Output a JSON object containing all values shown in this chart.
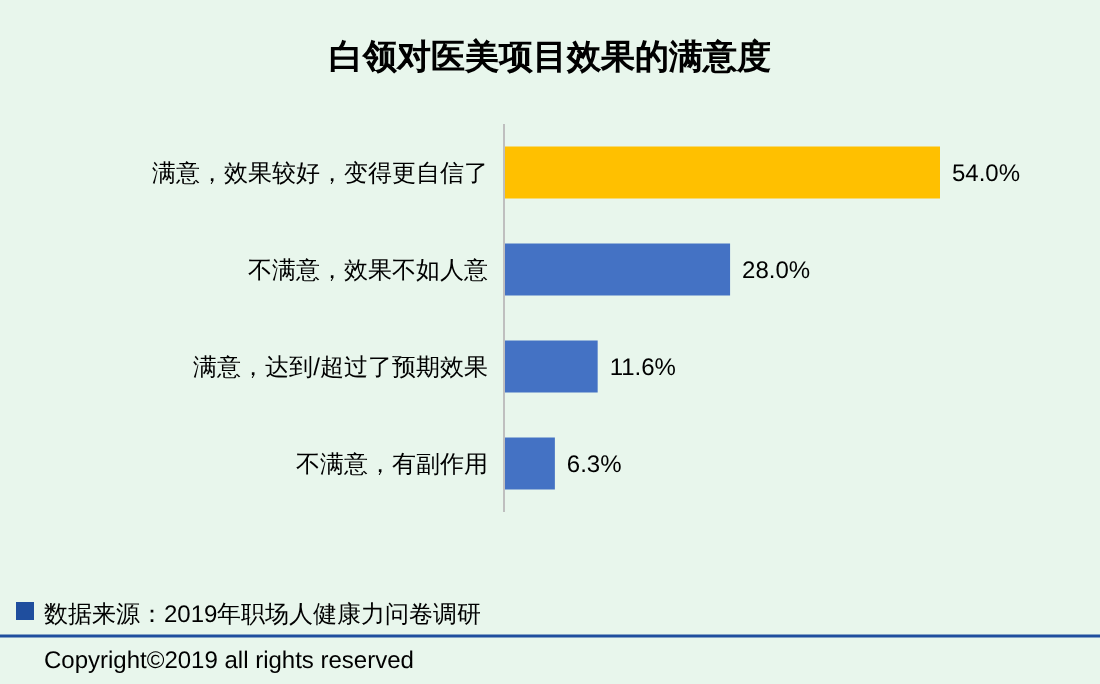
{
  "chart_data": {
    "type": "bar",
    "orientation": "horizontal",
    "title": "白领对医美项目效果的满意度",
    "categories": [
      "满意，效果较好，变得更自信了",
      "不满意，效果不如人意",
      "满意，达到/超过了预期效果",
      "不满意，有副作用"
    ],
    "values": [
      54.0,
      28.0,
      11.6,
      6.3
    ],
    "colors": [
      "#ffc000",
      "#4472c4",
      "#4472c4",
      "#4472c4"
    ],
    "value_labels": [
      "54.0%",
      "28.0%",
      "11.6%",
      "6.3%"
    ],
    "annotations": [
      "数据来源：2019年职场人健康力问卷调研",
      "Copyright©2019 all rights reserved"
    ]
  }
}
